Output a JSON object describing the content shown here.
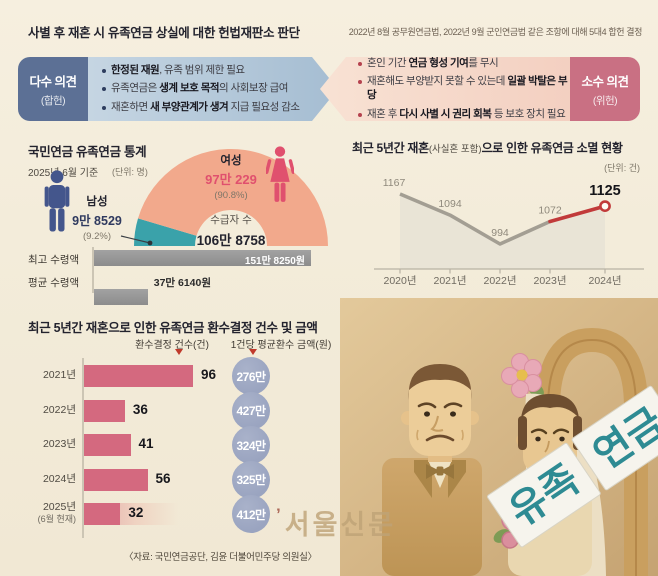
{
  "colors": {
    "ink": "#23232e",
    "muted": "#7d7668",
    "majority_label_bg": "#5c7095",
    "majority_arrow_from": "#c9d8e4",
    "majority_arrow_to": "#a5bdd2",
    "majority_bullet": "#2e3d5e",
    "minority_label_bg": "#c97083",
    "minority_arrow_from": "#f3cfc0",
    "minority_arrow_to": "#f8e2d4",
    "minority_bullet": "#b5424e",
    "female_accent": "#e0506e",
    "male_accent": "#44568c",
    "male_value": "#2f3a5f",
    "line_gray": "#a39e93",
    "line_red": "#c13a3a",
    "area_fill": "#e9e4d6",
    "bar_rose": "#d4697f",
    "circle_blue": "#9aa4c0",
    "marker_red": "#c0392b",
    "watermark": "#bfa377",
    "sign_teal": "#2e8b93"
  },
  "header": {
    "title": "사별 후 재혼 시 유족연금 상실에 대한 헌법재판소 판단",
    "subtitle": "2022년 8월 공무원연금법, 2022년 9월 군인연금법 같은 조항에 대해 5대4 합헌 결정"
  },
  "opinions": {
    "majority": {
      "label": "다수 의견",
      "stance": "(합헌)",
      "bullets": [
        [
          {
            "t": "한정된 재원",
            "b": true
          },
          {
            "t": ", 유족 범위 제한 필요",
            "b": false
          }
        ],
        [
          {
            "t": "유족연금은 ",
            "b": false
          },
          {
            "t": "생계 보호 목적",
            "b": true
          },
          {
            "t": "의 사회보장 급여",
            "b": false
          }
        ],
        [
          {
            "t": "재혼하면 ",
            "b": false
          },
          {
            "t": "새 부양관계가 생겨",
            "b": true
          },
          {
            "t": " 지급 필요성 감소",
            "b": false
          }
        ]
      ]
    },
    "minority": {
      "label": "소수 의견",
      "stance": "(위헌)",
      "bullets": [
        [
          {
            "t": "혼인 기간 ",
            "b": false
          },
          {
            "t": "연금 형성 기여",
            "b": true
          },
          {
            "t": "를 무시",
            "b": false
          }
        ],
        [
          {
            "t": "재혼해도 부양받지 못할 수 있는데 ",
            "b": false
          },
          {
            "t": "일괄 박탈은 부당",
            "b": true
          }
        ],
        [
          {
            "t": "재혼 후 ",
            "b": false
          },
          {
            "t": "다시 사별 시 권리 회복",
            "b": true
          },
          {
            "t": " 등 보호 장치 필요",
            "b": false
          }
        ]
      ]
    }
  },
  "stats": {
    "title": "국민연금 유족연금 통계",
    "as_of": "2025년 6월 기준",
    "unit": "(단위: 명)"
  },
  "chart_data": [
    {
      "id": "recipients_donut",
      "type": "pie",
      "style": "half-donut",
      "title": "국민연금 유족연금 통계",
      "unit": "명",
      "slices": [
        {
          "name": "여성",
          "value": 970229,
          "value_label": "97만 229",
          "pct": 90.8,
          "pct_label": "(90.8%)",
          "color": "#f2a98c"
        },
        {
          "name": "남성",
          "value": 98529,
          "value_label": "9만 8529",
          "pct": 9.2,
          "pct_label": "(9.2%)",
          "color": "#3aa2aa"
        }
      ],
      "center": {
        "label": "수급자 수",
        "value": 1068758,
        "value_label": "106만 8758"
      }
    },
    {
      "id": "benefit_amounts",
      "type": "bar",
      "orientation": "horizontal",
      "categories": [
        "최고 수령액",
        "평균 수령액"
      ],
      "values": [
        1518250,
        376140
      ],
      "value_labels": [
        "151만 8250원",
        "37만 6140원"
      ],
      "unit": "원"
    },
    {
      "id": "extinguished_by_remarriage",
      "type": "line",
      "title": "최근 5년간 재혼(사실혼 포함)으로 인한 유족연금 소멸 현황",
      "title_parts": [
        "최근 5년간 재혼",
        "(사실혼 포함)",
        "으로 인한 유족연금 소멸 현황"
      ],
      "unit": "(단위: 건)",
      "categories": [
        "2020년",
        "2021년",
        "2022년",
        "2023년",
        "2024년"
      ],
      "values": [
        1167,
        1094,
        994,
        1072,
        1125
      ],
      "highlight_last_segment": true,
      "ylim": [
        950,
        1200
      ],
      "legend": "none",
      "grid": false
    },
    {
      "id": "recovery_decisions",
      "type": "bar",
      "orientation": "horizontal",
      "title": "최근 5년간 재혼으로 인한 유족연금 환수결정 건수 및 금액",
      "col_headers": [
        "환수결정 건수(건)",
        "1건당 평균환수 금액(원)"
      ],
      "categories": [
        "2021년",
        "2022년",
        "2023년",
        "2024년",
        "2025년"
      ],
      "category_notes": [
        "",
        "",
        "",
        "",
        "(6월 현재)"
      ],
      "values": [
        96,
        36,
        41,
        56,
        32
      ],
      "partial_last_bar": true,
      "amount_labels": [
        "276만",
        "427만",
        "324만",
        "325만",
        "412만"
      ]
    }
  ],
  "source": "〈자료: 국민연금공단, 김윤 더불어민주당 의원실〉",
  "watermark": {
    "mark": "’",
    "text": "서울신문"
  },
  "illustration": {
    "sign_left": "유족",
    "sign_right": "연금"
  }
}
